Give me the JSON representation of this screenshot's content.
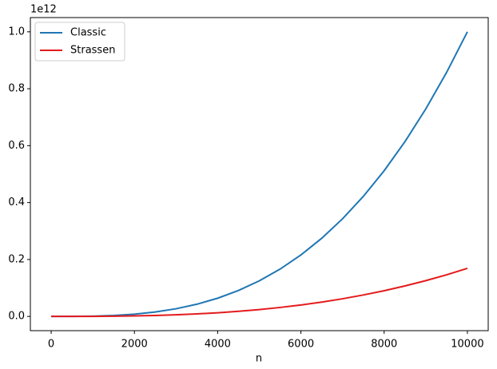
{
  "chart_data": {
    "type": "line",
    "x_label": "n",
    "y_offset_label": "1e12",
    "x": [
      0,
      500,
      1000,
      1500,
      2000,
      2500,
      3000,
      3500,
      4000,
      4500,
      5000,
      5500,
      6000,
      6500,
      7000,
      7500,
      8000,
      8500,
      9000,
      9500,
      10000
    ],
    "series": [
      {
        "name": "Classic",
        "color": "#1f77b4",
        "values": [
          0,
          0.000125,
          0.001,
          0.003375,
          0.008,
          0.015625,
          0.027,
          0.042875,
          0.064,
          0.091125,
          0.125,
          0.166375,
          0.216,
          0.274625,
          0.343,
          0.421875,
          0.512,
          0.614125,
          0.729,
          0.857375,
          1
        ]
      },
      {
        "name": "Strassen",
        "color": "#e41a1c",
        "values": [
          0,
          3.77e-05,
          0.000264,
          0.000823,
          0.001844,
          0.00345,
          0.00575,
          0.00887,
          0.0129,
          0.01797,
          0.02415,
          0.03155,
          0.0403,
          0.0504,
          0.0621,
          0.0754,
          0.0903,
          0.1071,
          0.1257,
          0.1463,
          0.169
        ]
      }
    ],
    "xlim": [
      -500,
      10500
    ],
    "ylim": [
      -0.05,
      1.05
    ],
    "xticks": [
      0,
      2000,
      4000,
      6000,
      8000,
      10000
    ],
    "yticks": [
      {
        "value": 0,
        "label": "0.0"
      },
      {
        "value": 0.2,
        "label": "0.2"
      },
      {
        "value": 0.4,
        "label": "0.4"
      },
      {
        "value": 0.6,
        "label": "0.6"
      },
      {
        "value": 0.8,
        "label": "0.8"
      },
      {
        "value": 1,
        "label": "1.0"
      }
    ],
    "legend": "upper left",
    "grid": false
  }
}
